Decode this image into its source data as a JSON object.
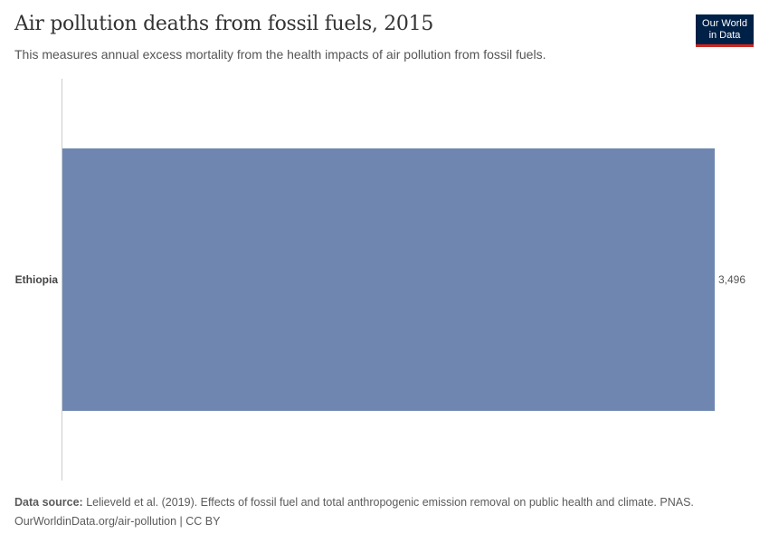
{
  "header": {
    "title": "Air pollution deaths from fossil fuels, 2015",
    "subtitle": "This measures annual excess mortality from the health impacts of air pollution from fossil fuels.",
    "logo_line1": "Our World",
    "logo_line2": "in Data"
  },
  "chart_data": {
    "type": "bar",
    "orientation": "horizontal",
    "categories": [
      "Ethiopia"
    ],
    "values": [
      3496
    ],
    "value_labels": [
      "3,496"
    ],
    "xlim": [
      0,
      3496
    ],
    "color": "#6f87b0",
    "grid": false
  },
  "footer": {
    "source_label": "Data source:",
    "source_text": " Lelieveld et al. (2019). Effects of fossil fuel and total anthropogenic emission removal on public health and climate. PNAS.",
    "url_line": "OurWorldinData.org/air-pollution | CC BY"
  }
}
